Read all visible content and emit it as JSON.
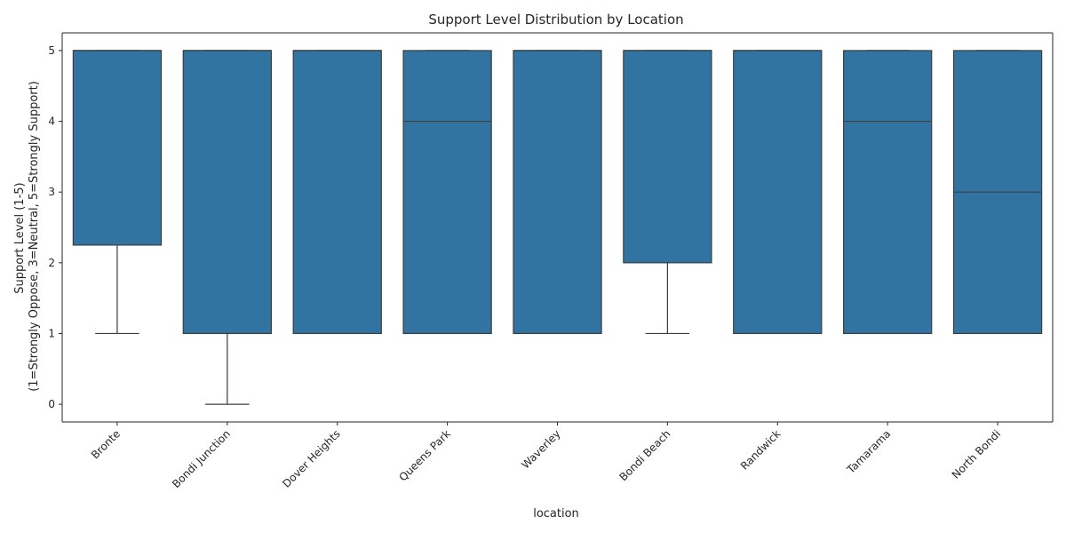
{
  "chart_data": {
    "type": "box",
    "title": "Support Level Distribution by Location",
    "xlabel": "location",
    "ylabel_lines": [
      "Support Level (1-5)",
      "(1=Strongly Oppose, 3=Neutral, 5=Strongly Support)"
    ],
    "ylim": [
      -0.25,
      5.25
    ],
    "yticks": [
      0,
      1,
      2,
      3,
      4,
      5
    ],
    "grid": false,
    "legend": "none",
    "colors": {
      "box_fill": "#3274a1",
      "line": "#3d3d3d",
      "axis": "#262626"
    },
    "categories": [
      "Bronte",
      "Bondi Junction",
      "Dover Heights",
      "Queens Park",
      "Waverley",
      "Bondi Beach",
      "Randwick",
      "Tamarama",
      "North Bondi"
    ],
    "boxes": [
      {
        "whislo": 1,
        "q1": 2.25,
        "med": 5,
        "q3": 5,
        "whishi": 5
      },
      {
        "whislo": 0,
        "q1": 1,
        "med": 5,
        "q3": 5,
        "whishi": 5
      },
      {
        "whislo": 1,
        "q1": 1,
        "med": 5,
        "q3": 5,
        "whishi": 5
      },
      {
        "whislo": 1,
        "q1": 1,
        "med": 4,
        "q3": 5,
        "whishi": 5
      },
      {
        "whislo": 1,
        "q1": 1,
        "med": 5,
        "q3": 5,
        "whishi": 5
      },
      {
        "whislo": 1,
        "q1": 2,
        "med": 5,
        "q3": 5,
        "whishi": 5
      },
      {
        "whislo": 1,
        "q1": 1,
        "med": 5,
        "q3": 5,
        "whishi": 5
      },
      {
        "whislo": 1,
        "q1": 1,
        "med": 4,
        "q3": 5,
        "whishi": 5
      },
      {
        "whislo": 1,
        "q1": 1,
        "med": 3,
        "q3": 5,
        "whishi": 5
      }
    ]
  }
}
